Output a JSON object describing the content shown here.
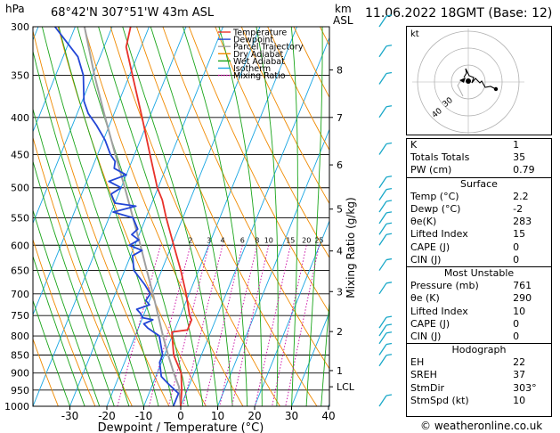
{
  "header": {
    "pressure_unit": "hPa",
    "location": "68°42'N  307°51'W  43m  ASL",
    "height_unit": "km",
    "height_ref": "ASL",
    "datetime": "11.06.2022  18GMT  (Base: 12)"
  },
  "footer": {
    "credit": "© weatheronline.co.uk"
  },
  "chart_data": {
    "type": "skew-t log-p",
    "xlabel": "Dewpoint / Temperature (°C)",
    "ylabel": "",
    "mixing_ratio_label": "Mixing Ratio (g/kg)",
    "x_ticks": [
      -30,
      -20,
      -10,
      0,
      10,
      20,
      30,
      40
    ],
    "pressure_levels": [
      300,
      350,
      400,
      450,
      500,
      550,
      600,
      650,
      700,
      750,
      800,
      850,
      900,
      950,
      1000
    ],
    "km_ticks": [
      {
        "label": "8",
        "p": 344
      },
      {
        "label": "7",
        "p": 400
      },
      {
        "label": "6",
        "p": 465
      },
      {
        "label": "5",
        "p": 535
      },
      {
        "label": "4",
        "p": 611
      },
      {
        "label": "3",
        "p": 695
      },
      {
        "label": "2",
        "p": 789
      },
      {
        "label": "1",
        "p": 893
      },
      {
        "label": "LCL",
        "p": 940
      }
    ],
    "mixing_ratio_values": [
      "1",
      "2",
      "3",
      "4",
      "6",
      "8",
      "10",
      "15",
      "20",
      "25"
    ],
    "legend": [
      {
        "name": "Temperature",
        "color": "#e8312a"
      },
      {
        "name": "Dewpoint",
        "color": "#2346d6"
      },
      {
        "name": "Parcel Trajectory",
        "color": "#a0a0a0"
      },
      {
        "name": "Dry Adiabat",
        "color": "#f08a00"
      },
      {
        "name": "Wet Adiabat",
        "color": "#1aa51a"
      },
      {
        "name": "Isotherm",
        "color": "#19a6e2"
      },
      {
        "name": "Mixing Ratio",
        "color": "#c800a0"
      }
    ],
    "series": [
      {
        "name": "Temperature",
        "points": [
          [
            1000,
            0.0
          ],
          [
            950,
            -1.5
          ],
          [
            900,
            -3.5
          ],
          [
            850,
            -7.5
          ],
          [
            810,
            -9.5
          ],
          [
            790,
            -10.5
          ],
          [
            785,
            -6.5
          ],
          [
            760,
            -6.5
          ],
          [
            750,
            -7.5
          ],
          [
            700,
            -10.8
          ],
          [
            650,
            -14.8
          ],
          [
            600,
            -19.5
          ],
          [
            550,
            -24.5
          ],
          [
            520,
            -27.5
          ],
          [
            500,
            -30.2
          ],
          [
            450,
            -35.8
          ],
          [
            400,
            -42.0
          ],
          [
            350,
            -49.2
          ],
          [
            320,
            -54.0
          ],
          [
            300,
            -55.0
          ]
        ]
      },
      {
        "name": "Dewpoint",
        "points": [
          [
            1000,
            -2.0
          ],
          [
            960,
            -2.0
          ],
          [
            930,
            -6.0
          ],
          [
            910,
            -8.5
          ],
          [
            870,
            -10.5
          ],
          [
            850,
            -10.5
          ],
          [
            800,
            -13.5
          ],
          [
            780,
            -17.5
          ],
          [
            770,
            -19.0
          ],
          [
            760,
            -17.0
          ],
          [
            755,
            -20.0
          ],
          [
            745,
            -21.0
          ],
          [
            735,
            -22.5
          ],
          [
            725,
            -19.5
          ],
          [
            715,
            -21.0
          ],
          [
            700,
            -20.5
          ],
          [
            680,
            -23.0
          ],
          [
            650,
            -27.5
          ],
          [
            620,
            -29.5
          ],
          [
            610,
            -27.5
          ],
          [
            600,
            -31.5
          ],
          [
            590,
            -29.5
          ],
          [
            580,
            -32.0
          ],
          [
            570,
            -31.0
          ],
          [
            550,
            -33.5
          ],
          [
            540,
            -39.5
          ],
          [
            530,
            -34.0
          ],
          [
            525,
            -40.0
          ],
          [
            510,
            -42.0
          ],
          [
            500,
            -40.0
          ],
          [
            490,
            -44.0
          ],
          [
            480,
            -40.0
          ],
          [
            470,
            -44.0
          ],
          [
            460,
            -44.5
          ],
          [
            450,
            -46.5
          ],
          [
            430,
            -49.5
          ],
          [
            410,
            -53.5
          ],
          [
            395,
            -57.0
          ],
          [
            380,
            -59.5
          ],
          [
            350,
            -62.5
          ],
          [
            330,
            -66.0
          ],
          [
            300,
            -75.5
          ]
        ]
      },
      {
        "name": "Parcel Trajectory",
        "points": [
          [
            1000,
            0.0
          ],
          [
            940,
            -2.6
          ],
          [
            900,
            -5.5
          ],
          [
            850,
            -9.0
          ],
          [
            800,
            -12.5
          ],
          [
            750,
            -16.0
          ],
          [
            700,
            -19.8
          ],
          [
            650,
            -24.0
          ],
          [
            600,
            -28.5
          ],
          [
            550,
            -33.5
          ],
          [
            500,
            -39.0
          ],
          [
            450,
            -45.2
          ],
          [
            400,
            -52.0
          ],
          [
            350,
            -59.5
          ],
          [
            300,
            -67.5
          ]
        ]
      }
    ],
    "wind_barbs_color": "#1aa8c8"
  },
  "hodograph": {
    "unit_label": "kt",
    "ring_labels": [
      "40",
      "30"
    ]
  },
  "indices": {
    "top": [
      {
        "label": "K",
        "value": "1"
      },
      {
        "label": "Totals Totals",
        "value": "35"
      },
      {
        "label": "PW (cm)",
        "value": "0.79"
      }
    ],
    "surface_title": "Surface",
    "surface": [
      {
        "label": "Temp (°C)",
        "value": "2.2"
      },
      {
        "label": "Dewp (°C)",
        "value": "-2"
      },
      {
        "label": "θe(K)",
        "value": "283"
      },
      {
        "label": "Lifted Index",
        "value": "15"
      },
      {
        "label": "CAPE (J)",
        "value": "0"
      },
      {
        "label": "CIN (J)",
        "value": "0"
      }
    ],
    "unstable_title": "Most Unstable",
    "unstable": [
      {
        "label": "Pressure (mb)",
        "value": "761"
      },
      {
        "label": "θe (K)",
        "value": "290"
      },
      {
        "label": "Lifted Index",
        "value": "10"
      },
      {
        "label": "CAPE (J)",
        "value": "0"
      },
      {
        "label": "CIN (J)",
        "value": "0"
      }
    ],
    "hodo_title": "Hodograph",
    "hodo": [
      {
        "label": "EH",
        "value": "22"
      },
      {
        "label": "SREH",
        "value": "37"
      },
      {
        "label": "StmDir",
        "value": "303°"
      },
      {
        "label": "StmSpd (kt)",
        "value": "10"
      }
    ]
  }
}
